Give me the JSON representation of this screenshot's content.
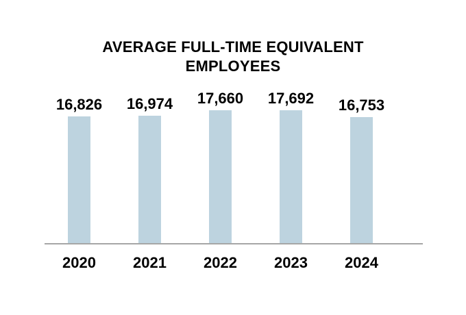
{
  "chart_data": {
    "type": "bar",
    "title": "AVERAGE FULL-TIME EQUIVALENT EMPLOYEES",
    "categories": [
      "2020",
      "2021",
      "2022",
      "2023",
      "2024"
    ],
    "values": [
      16826,
      16974,
      17660,
      17692,
      16753
    ],
    "value_labels": [
      "16,826",
      "16,974",
      "17,660",
      "17,692",
      "16,753"
    ],
    "xlabel": "",
    "ylabel": "",
    "baseline": 0,
    "layout_hints": {
      "grid": false,
      "legend": false,
      "y_axis_visible": false,
      "data_labels_position": "above-bars"
    },
    "colors": {
      "bar_fill": "#BDD3DF",
      "axis_line": "#A6A6A6",
      "text": "#000000",
      "background": "#FFFFFF"
    }
  }
}
